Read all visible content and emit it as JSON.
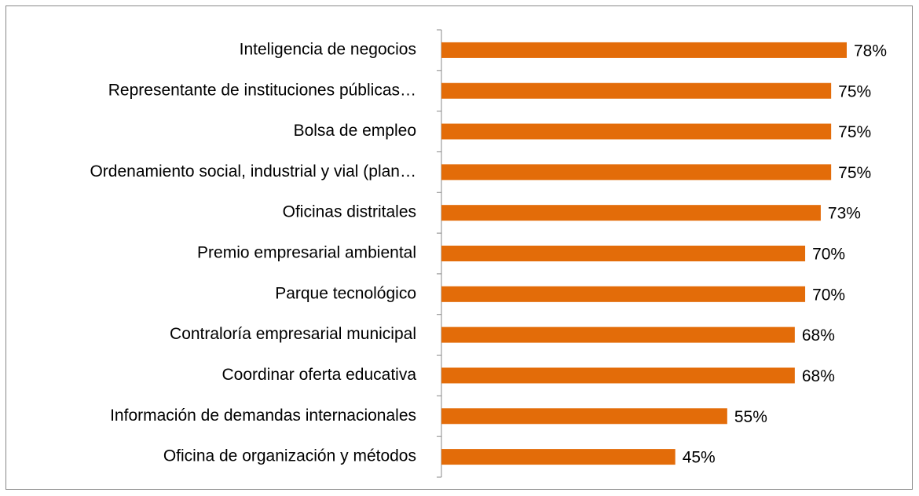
{
  "chart_data": {
    "type": "bar",
    "orientation": "horizontal",
    "categories": [
      "Inteligencia de negocios",
      "Representante de instituciones públicas…",
      "Bolsa de empleo",
      "Ordenamiento social, industrial y vial (plan…",
      "Oficinas distritales",
      "Premio empresarial ambiental",
      "Parque tecnológico",
      "Contraloría empresarial municipal",
      "Coordinar oferta educativa",
      "Información de demandas internacionales",
      "Oficina de organización y métodos"
    ],
    "values": [
      78,
      75,
      75,
      75,
      73,
      70,
      70,
      68,
      68,
      55,
      45
    ],
    "value_labels": [
      "78%",
      "75%",
      "75%",
      "75%",
      "73%",
      "70%",
      "70%",
      "68%",
      "68%",
      "55%",
      "45%"
    ],
    "color": "#e36c09"
  }
}
